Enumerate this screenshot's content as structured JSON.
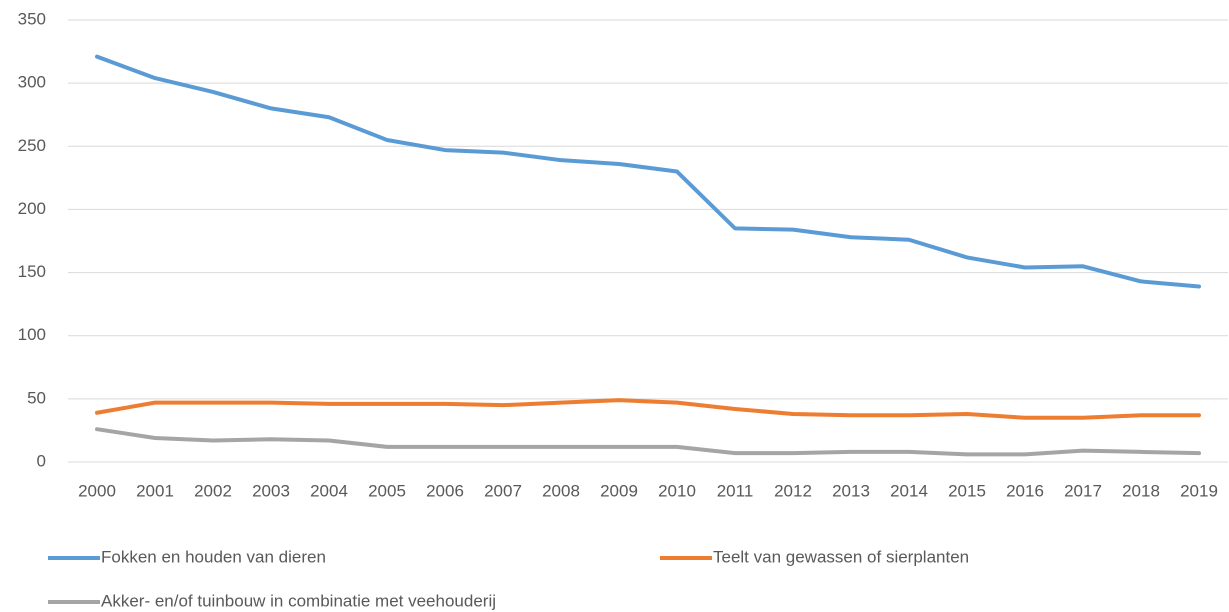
{
  "chart_data": {
    "type": "line",
    "categories": [
      "2000",
      "2001",
      "2002",
      "2003",
      "2004",
      "2005",
      "2006",
      "2007",
      "2008",
      "2009",
      "2010",
      "2011",
      "2012",
      "2013",
      "2014",
      "2015",
      "2016",
      "2017",
      "2018",
      "2019"
    ],
    "series": [
      {
        "name": "Fokken en houden van dieren",
        "color": "#5b9bd5",
        "values": [
          321,
          304,
          293,
          280,
          273,
          255,
          247,
          245,
          239,
          236,
          230,
          185,
          184,
          178,
          176,
          162,
          154,
          155,
          143,
          139
        ]
      },
      {
        "name": "Teelt van gewassen of sierplanten",
        "color": "#ed7d31",
        "values": [
          39,
          47,
          47,
          47,
          46,
          46,
          46,
          45,
          47,
          49,
          47,
          42,
          38,
          37,
          37,
          38,
          35,
          35,
          37,
          37
        ]
      },
      {
        "name": "Akker- en/of tuinbouw in combinatie met veehouderij",
        "color": "#a5a5a5",
        "values": [
          26,
          19,
          17,
          18,
          17,
          12,
          12,
          12,
          12,
          12,
          12,
          7,
          7,
          8,
          8,
          6,
          6,
          9,
          8,
          7
        ]
      }
    ],
    "ylim": [
      0,
      350
    ],
    "yticks": [
      0,
      50,
      100,
      150,
      200,
      250,
      300,
      350
    ],
    "grid": true,
    "legend": "bottom"
  }
}
